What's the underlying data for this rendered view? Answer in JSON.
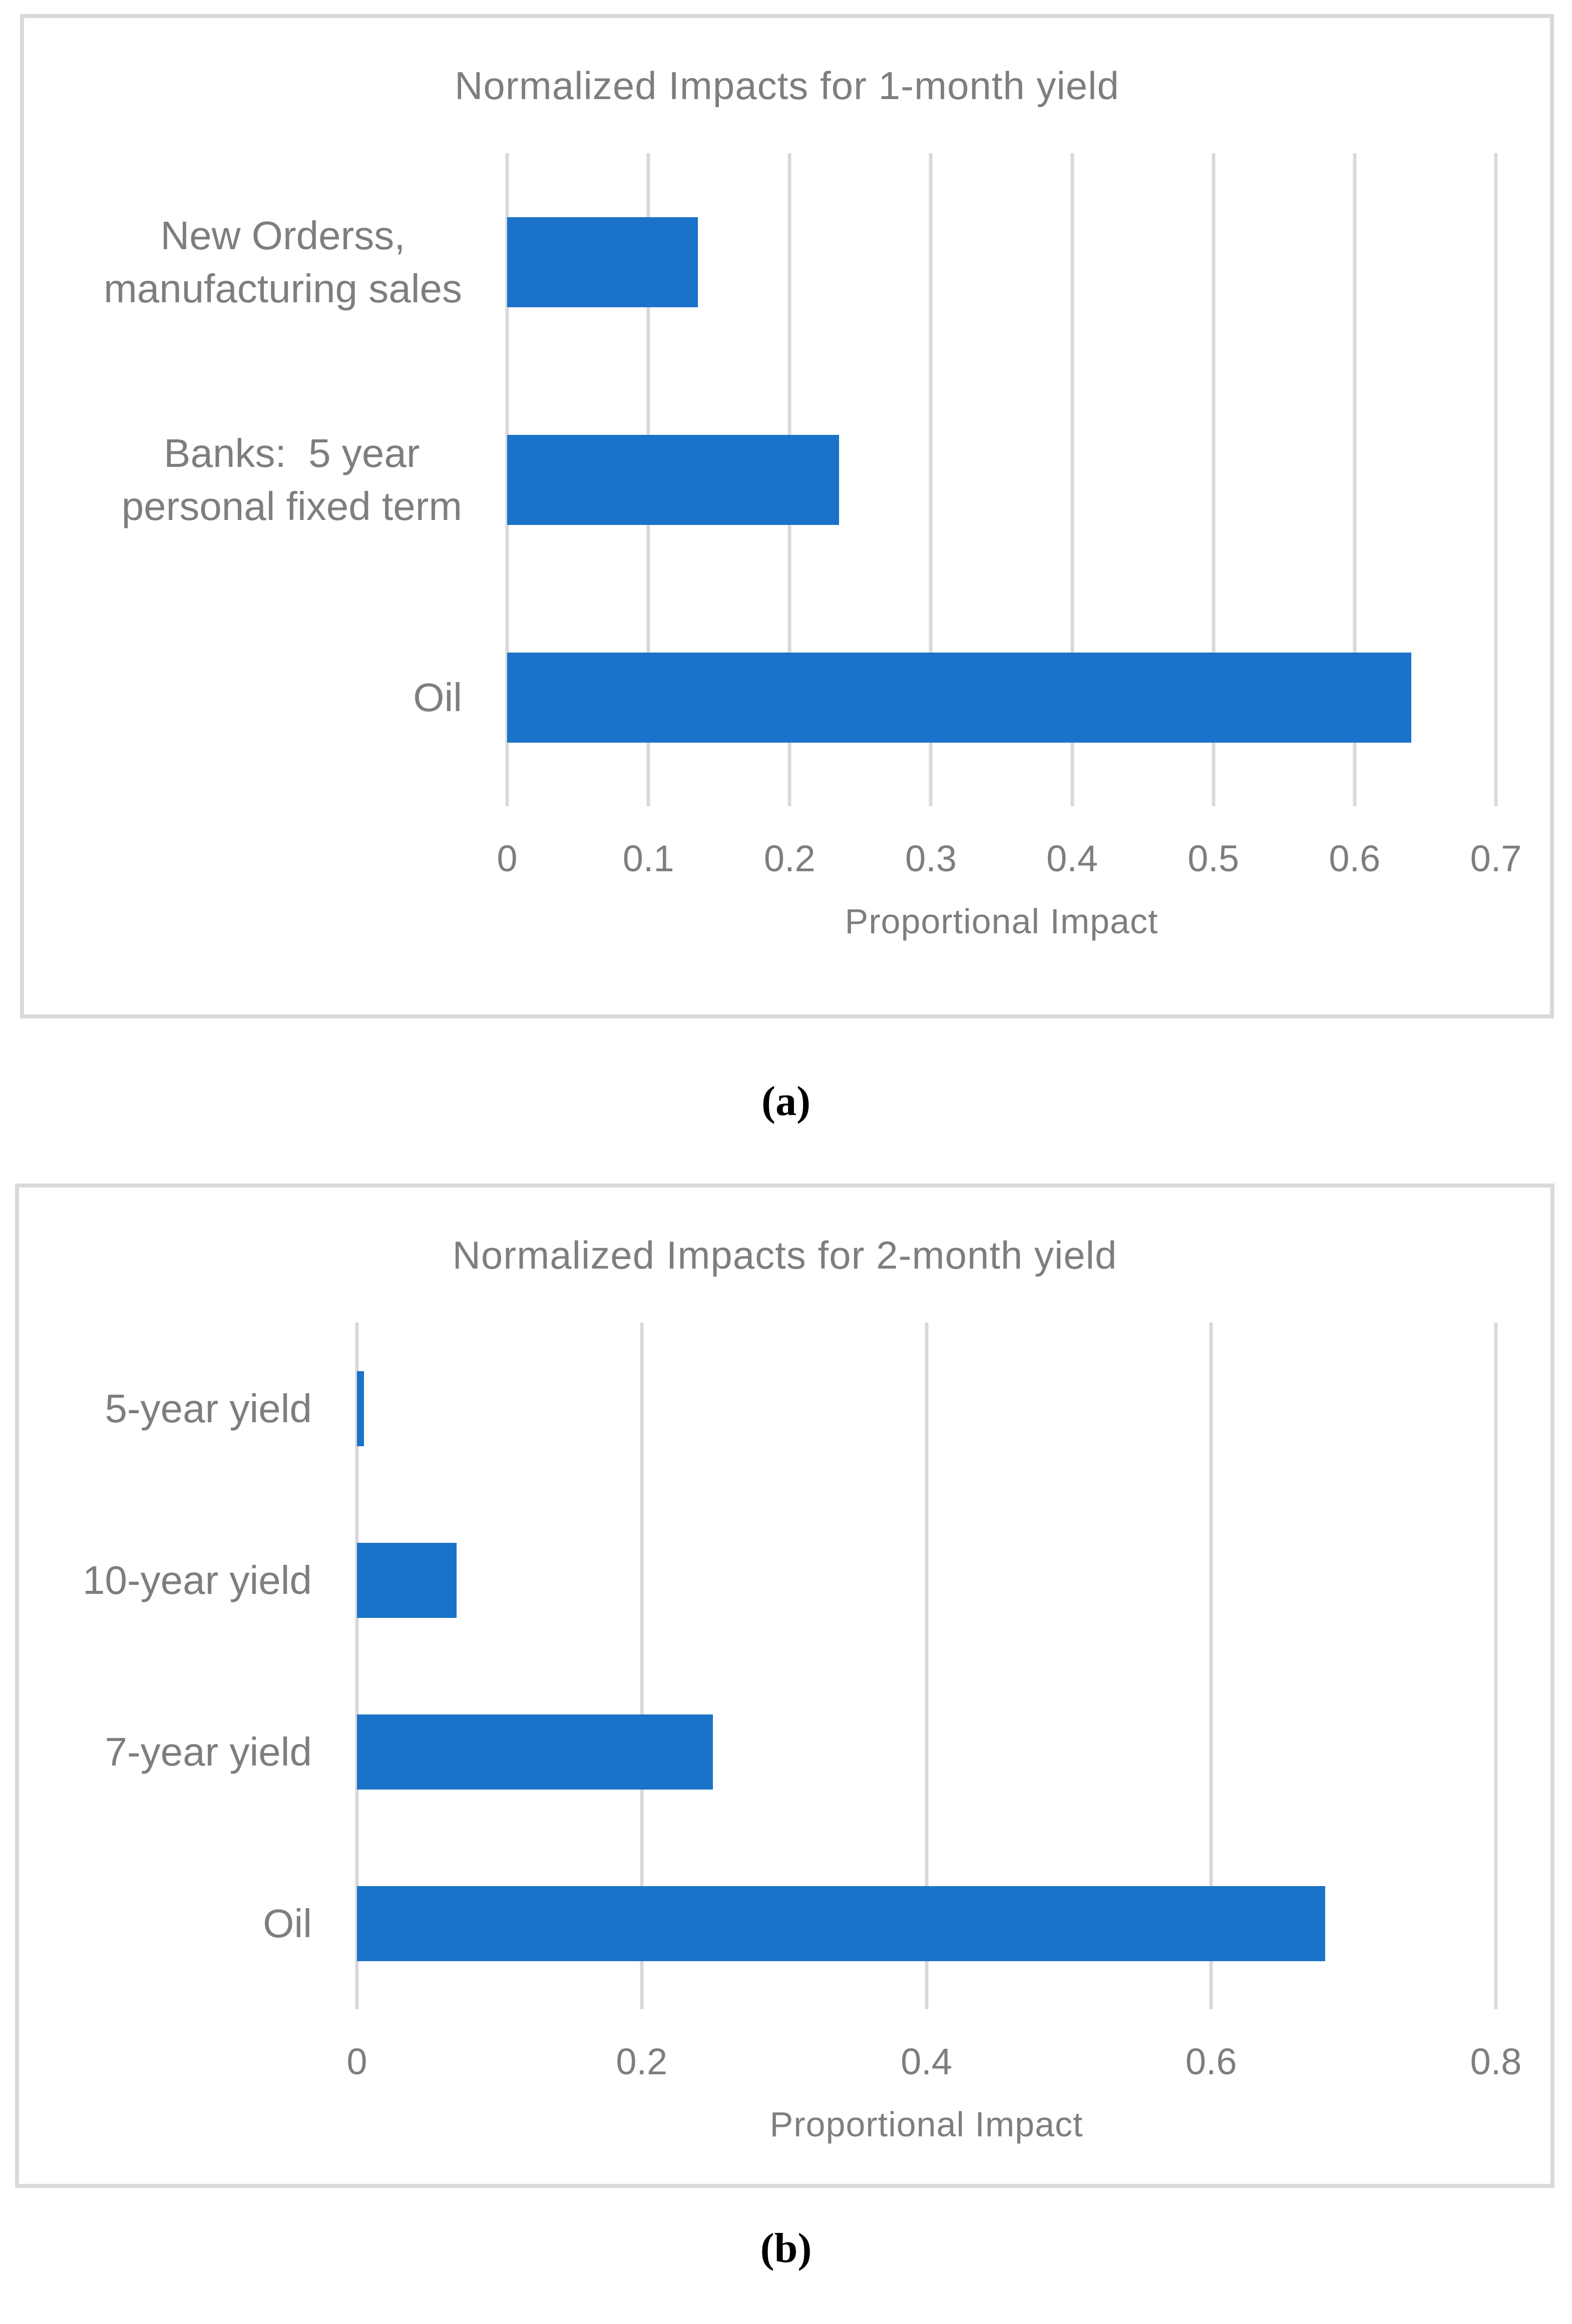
{
  "colors": {
    "bar": "#1A73C8",
    "grid": "#D9D9D9",
    "panel_border": "#D9D9D9",
    "text": "#7E7E7E",
    "caption": "#000000"
  },
  "chart_data": [
    {
      "type": "bar",
      "orientation": "horizontal",
      "title": "Normalized Impacts for 1-month yield",
      "categories": [
        "New Orderss,\nmanufacturing sales",
        "Banks:  5 year\npersonal fixed term",
        "Oil"
      ],
      "values": [
        0.135,
        0.235,
        0.64
      ],
      "xlabel": "Proportional Impact",
      "xlim": [
        0,
        0.7
      ],
      "xticks": [
        0,
        0.1,
        0.2,
        0.3,
        0.4,
        0.5,
        0.6,
        0.7
      ],
      "grid": true,
      "legend": false,
      "caption": "(a)"
    },
    {
      "type": "bar",
      "orientation": "horizontal",
      "title": "Normalized Impacts for 2-month yield",
      "categories": [
        "5-year yield",
        "10-year yield",
        "7-year yield",
        "Oil"
      ],
      "values": [
        0.005,
        0.07,
        0.25,
        0.68
      ],
      "xlabel": "Proportional Impact",
      "xlim": [
        0,
        0.8
      ],
      "xticks": [
        0,
        0.2,
        0.4,
        0.6,
        0.8
      ],
      "grid": true,
      "legend": false,
      "caption": "(b)"
    }
  ]
}
